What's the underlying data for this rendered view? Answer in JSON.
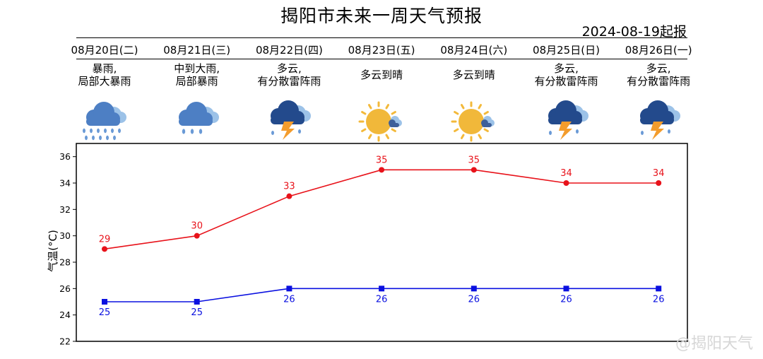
{
  "title": "揭阳市未来一周天气预报",
  "issued": "2024-08-19起报",
  "days": [
    {
      "date": "08月20日(二)",
      "desc_lines": [
        "暴雨,",
        "局部大暴雨"
      ],
      "icon": "heavy-rain-icon"
    },
    {
      "date": "08月21日(三)",
      "desc_lines": [
        "中到大雨,",
        "局部暴雨"
      ],
      "icon": "rain-icon"
    },
    {
      "date": "08月22日(四)",
      "desc_lines": [
        "多云,",
        "有分散雷阵雨"
      ],
      "icon": "thunderstorm-icon"
    },
    {
      "date": "08月23日(五)",
      "desc_lines": [
        "多云到晴",
        ""
      ],
      "icon": "sun-cloud-icon"
    },
    {
      "date": "08月24日(六)",
      "desc_lines": [
        "多云到晴",
        ""
      ],
      "icon": "sun-cloud-icon"
    },
    {
      "date": "08月25日(日)",
      "desc_lines": [
        "多云,",
        "有分散雷阵雨"
      ],
      "icon": "thunderstorm-icon"
    },
    {
      "date": "08月26日(一)",
      "desc_lines": [
        "多云,",
        "有分散雷阵雨"
      ],
      "icon": "thunderstorm-icon"
    }
  ],
  "chart_data": {
    "type": "line",
    "categories": [
      "08月20日(二)",
      "08月21日(三)",
      "08月22日(四)",
      "08月23日(五)",
      "08月24日(六)",
      "08月25日(日)",
      "08月26日(一)"
    ],
    "series": [
      {
        "values": [
          29,
          30,
          33,
          35,
          35,
          34,
          34
        ],
        "color": "#e8121a",
        "marker": "circle"
      },
      {
        "values": [
          25,
          25,
          26,
          26,
          26,
          26,
          26
        ],
        "color": "#0a10e0",
        "marker": "square"
      }
    ],
    "ylabel": "气温(°C)",
    "ylim": [
      22,
      37
    ],
    "yticks": [
      22,
      24,
      26,
      28,
      30,
      32,
      34,
      36
    ],
    "grid": false
  },
  "watermark": "@揭阳天气"
}
